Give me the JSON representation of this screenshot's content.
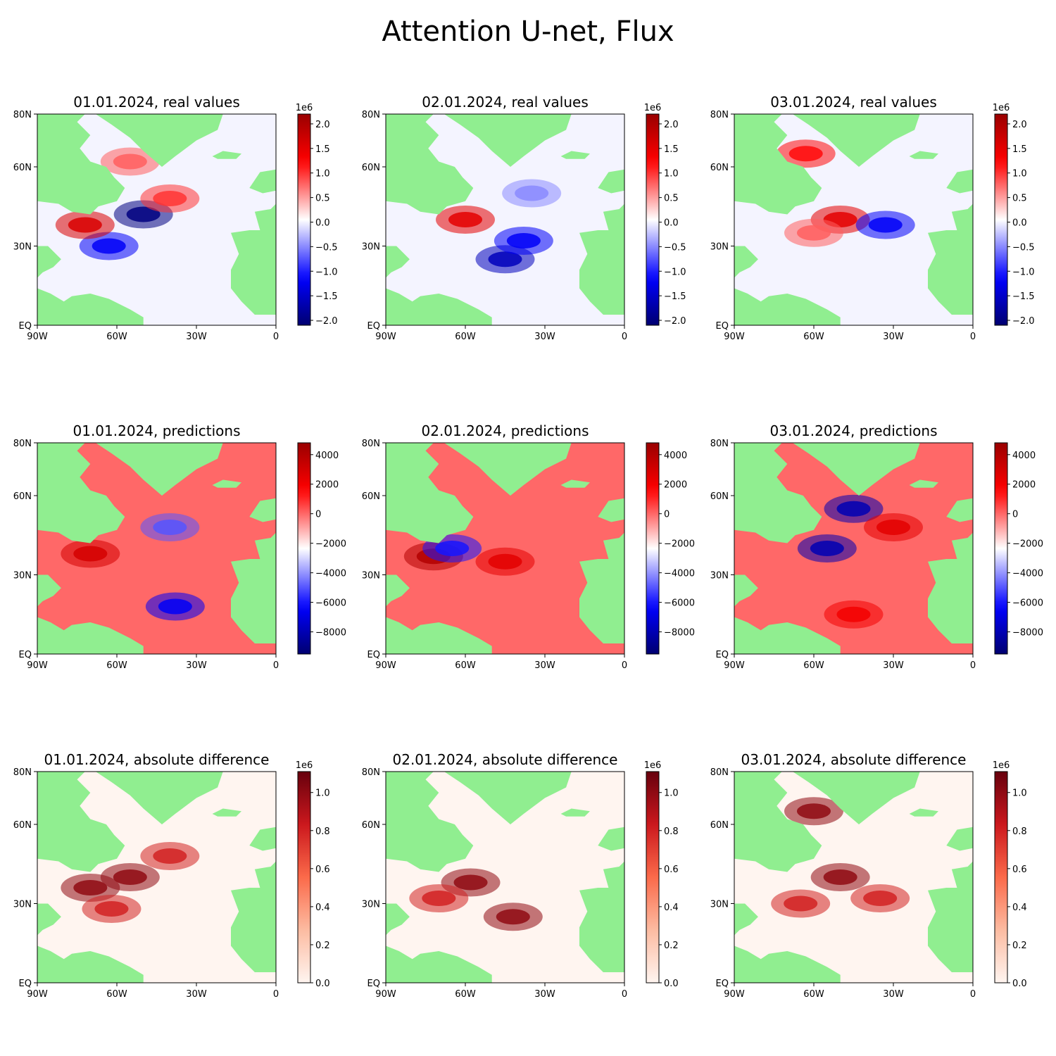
{
  "title": "Attention U-net, Flux",
  "chart_data": {
    "type": "heatmap",
    "x_ticks": [
      "90W",
      "60W",
      "30W",
      "0"
    ],
    "y_ticks": [
      "EQ",
      "30N",
      "60N",
      "80N"
    ],
    "xlim": [
      -90,
      0
    ],
    "ylim": [
      0,
      80
    ],
    "land_color": "#90ee90",
    "rows": [
      {
        "panels": [
          {
            "title": "01.01.2024, real values",
            "highlights": [
              {
                "lon": -50,
                "lat": 42,
                "value": -2000000.0
              },
              {
                "lon": -63,
                "lat": 30,
                "value": -1200000.0
              },
              {
                "lon": -72,
                "lat": 38,
                "value": 1600000.0
              },
              {
                "lon": -40,
                "lat": 48,
                "value": 1000000.0
              },
              {
                "lon": -55,
                "lat": 62,
                "value": 800000.0
              }
            ]
          },
          {
            "title": "02.01.2024, real values",
            "highlights": [
              {
                "lon": -60,
                "lat": 40,
                "value": 1500000.0
              },
              {
                "lon": -45,
                "lat": 25,
                "value": -1600000.0
              },
              {
                "lon": -38,
                "lat": 32,
                "value": -1200000.0
              },
              {
                "lon": -35,
                "lat": 50,
                "value": -500000.0
              }
            ]
          },
          {
            "title": "03.01.2024, real values",
            "highlights": [
              {
                "lon": -50,
                "lat": 40,
                "value": 1500000.0
              },
              {
                "lon": -60,
                "lat": 35,
                "value": 800000.0
              },
              {
                "lon": -63,
                "lat": 65,
                "value": 1200000.0
              },
              {
                "lon": -33,
                "lat": 38,
                "value": -1200000.0
              }
            ]
          }
        ],
        "colorbar": {
          "cmap": "seismic",
          "vmin": -2100000.0,
          "vmax": 2200000.0,
          "multiplier": "1e6",
          "ticks": [
            -2000000.0,
            -1500000.0,
            -1000000.0,
            -500000.0,
            0.0,
            500000.0,
            1000000.0,
            1500000.0,
            2000000.0
          ],
          "tick_labels": [
            "−2.0",
            "−1.5",
            "−1.0",
            "−0.5",
            "0.0",
            "0.5",
            "1.0",
            "1.5",
            "2.0"
          ]
        }
      },
      {
        "panels": [
          {
            "title": "01.01.2024, predictions",
            "highlights": [
              {
                "lon": -38,
                "lat": 18,
                "value": -6500
              },
              {
                "lon": -70,
                "lat": 38,
                "value": 3000
              },
              {
                "lon": -40,
                "lat": 48,
                "value": -5000
              }
            ]
          },
          {
            "title": "02.01.2024, predictions",
            "highlights": [
              {
                "lon": -45,
                "lat": 35,
                "value": 2500
              },
              {
                "lon": -72,
                "lat": 37,
                "value": 4000
              },
              {
                "lon": -65,
                "lat": 40,
                "value": -6000
              }
            ]
          },
          {
            "title": "03.01.2024, predictions",
            "highlights": [
              {
                "lon": -45,
                "lat": 55,
                "value": -8000
              },
              {
                "lon": -55,
                "lat": 40,
                "value": -8000
              },
              {
                "lon": -30,
                "lat": 48,
                "value": 2500
              },
              {
                "lon": -45,
                "lat": 15,
                "value": 2000
              }
            ]
          }
        ],
        "colorbar": {
          "cmap": "seismic",
          "vmin": -9500,
          "vmax": 4800,
          "multiplier": "",
          "ticks": [
            -8000,
            -6000,
            -4000,
            -2000,
            0,
            2000,
            4000
          ],
          "tick_labels": [
            "−8000",
            "−6000",
            "−4000",
            "−2000",
            "0",
            "2000",
            "4000"
          ]
        }
      },
      {
        "panels": [
          {
            "title": "01.01.2024, absolute difference",
            "highlights": [
              {
                "lon": -55,
                "lat": 40,
                "value": 1000000.0
              },
              {
                "lon": -70,
                "lat": 36,
                "value": 1000000.0
              },
              {
                "lon": -62,
                "lat": 28,
                "value": 800000.0
              },
              {
                "lon": -40,
                "lat": 48,
                "value": 800000.0
              }
            ]
          },
          {
            "title": "02.01.2024, absolute difference",
            "highlights": [
              {
                "lon": -58,
                "lat": 38,
                "value": 1000000.0
              },
              {
                "lon": -42,
                "lat": 25,
                "value": 1000000.0
              },
              {
                "lon": -70,
                "lat": 32,
                "value": 800000.0
              }
            ]
          },
          {
            "title": "03.01.2024, absolute difference",
            "highlights": [
              {
                "lon": -50,
                "lat": 40,
                "value": 1000000.0
              },
              {
                "lon": -60,
                "lat": 65,
                "value": 1000000.0
              },
              {
                "lon": -65,
                "lat": 30,
                "value": 800000.0
              },
              {
                "lon": -35,
                "lat": 32,
                "value": 800000.0
              }
            ]
          }
        ],
        "colorbar": {
          "cmap": "reds",
          "vmin": 0,
          "vmax": 1110000.0,
          "multiplier": "1e6",
          "ticks": [
            0,
            200000.0,
            400000.0,
            600000.0,
            800000.0,
            1000000.0
          ],
          "tick_labels": [
            "0.0",
            "0.2",
            "0.4",
            "0.6",
            "0.8",
            "1.0"
          ]
        }
      }
    ]
  }
}
